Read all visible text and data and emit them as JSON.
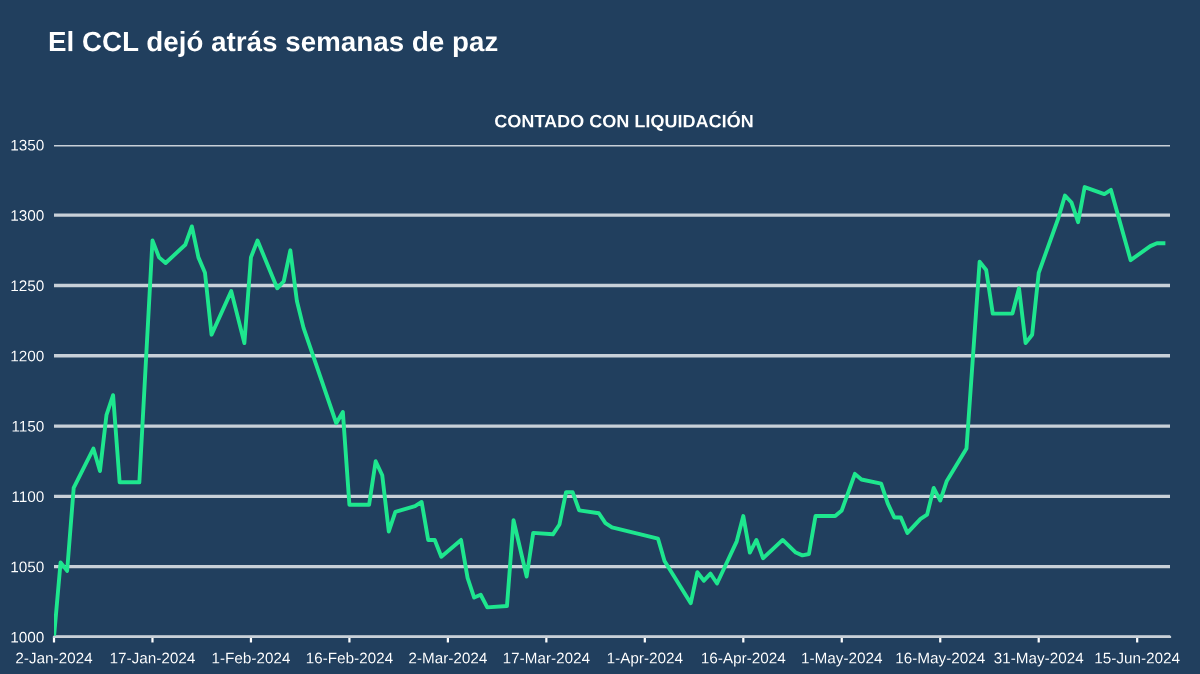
{
  "chart_data": {
    "type": "line",
    "title": "El CCL dejó atrás semanas de paz",
    "subtitle": "CONTADO CON LIQUIDACIÓN",
    "x": [
      "2024-01-02",
      "2024-01-03",
      "2024-01-04",
      "2024-01-05",
      "2024-01-08",
      "2024-01-09",
      "2024-01-10",
      "2024-01-11",
      "2024-01-12",
      "2024-01-15",
      "2024-01-17",
      "2024-01-18",
      "2024-01-19",
      "2024-01-22",
      "2024-01-23",
      "2024-01-24",
      "2024-01-25",
      "2024-01-26",
      "2024-01-29",
      "2024-01-31",
      "2024-02-01",
      "2024-02-02",
      "2024-02-05",
      "2024-02-06",
      "2024-02-07",
      "2024-02-08",
      "2024-02-09",
      "2024-02-14",
      "2024-02-15",
      "2024-02-16",
      "2024-02-19",
      "2024-02-20",
      "2024-02-21",
      "2024-02-22",
      "2024-02-23",
      "2024-02-26",
      "2024-02-27",
      "2024-02-28",
      "2024-02-29",
      "2024-03-01",
      "2024-03-04",
      "2024-03-05",
      "2024-03-06",
      "2024-03-07",
      "2024-03-08",
      "2024-03-11",
      "2024-03-12",
      "2024-03-14",
      "2024-03-15",
      "2024-03-18",
      "2024-03-19",
      "2024-03-20",
      "2024-03-21",
      "2024-03-22",
      "2024-03-25",
      "2024-03-26",
      "2024-03-27",
      "2024-04-03",
      "2024-04-04",
      "2024-04-08",
      "2024-04-09",
      "2024-04-10",
      "2024-04-11",
      "2024-04-12",
      "2024-04-15",
      "2024-04-16",
      "2024-04-17",
      "2024-04-18",
      "2024-04-19",
      "2024-04-22",
      "2024-04-24",
      "2024-04-25",
      "2024-04-26",
      "2024-04-27",
      "2024-04-30",
      "2024-05-01",
      "2024-05-03",
      "2024-05-04",
      "2024-05-07",
      "2024-05-08",
      "2024-05-09",
      "2024-05-10",
      "2024-05-11",
      "2024-05-13",
      "2024-05-14",
      "2024-05-15",
      "2024-05-16",
      "2024-05-17",
      "2024-05-20",
      "2024-05-22",
      "2024-05-23",
      "2024-05-24",
      "2024-05-27",
      "2024-05-28",
      "2024-05-29",
      "2024-05-30",
      "2024-05-31",
      "2024-06-03",
      "2024-06-04",
      "2024-06-05",
      "2024-06-06",
      "2024-06-07",
      "2024-06-10",
      "2024-06-11",
      "2024-06-14",
      "2024-06-17",
      "2024-06-18",
      "2024-06-19"
    ],
    "series": [
      {
        "color": "#1ee68e",
        "values": [
          1000,
          1053,
          1047,
          1106,
          1134,
          1118,
          1158,
          1172,
          1110,
          1110,
          1282,
          1270,
          1266,
          1279,
          1292,
          1270,
          1259,
          1215,
          1246,
          1209,
          1270,
          1282,
          1248,
          1253,
          1275,
          1239,
          1220,
          1152,
          1160,
          1094,
          1094,
          1125,
          1115,
          1075,
          1089,
          1093,
          1096,
          1069,
          1069,
          1057,
          1069,
          1042,
          1028,
          1030,
          1021,
          1022,
          1083,
          1043,
          1074,
          1073,
          1080,
          1103,
          1103,
          1090,
          1088,
          1081,
          1078,
          1070,
          1054,
          1024,
          1046,
          1040,
          1045,
          1038,
          1068,
          1086,
          1060,
          1069,
          1056,
          1069,
          1060,
          1058,
          1059,
          1086,
          1086,
          1090,
          1116,
          1112,
          1109,
          1095,
          1085,
          1085,
          1074,
          1084,
          1087,
          1106,
          1097,
          1111,
          1134,
          1267,
          1261,
          1230,
          1230,
          1248,
          1209,
          1215,
          1259,
          1298,
          1314,
          1309,
          1295,
          1320,
          1315,
          1318,
          1268,
          1278,
          1280,
          1280
        ]
      }
    ],
    "xlim": [
      "2024-01-02",
      "2024-06-20"
    ],
    "xticks": [
      {
        "value": "2024-01-02",
        "label": "2-Jan-2024"
      },
      {
        "value": "2024-01-17",
        "label": "17-Jan-2024"
      },
      {
        "value": "2024-02-01",
        "label": "1-Feb-2024"
      },
      {
        "value": "2024-02-16",
        "label": "16-Feb-2024"
      },
      {
        "value": "2024-03-02",
        "label": "2-Mar-2024"
      },
      {
        "value": "2024-03-17",
        "label": "17-Mar-2024"
      },
      {
        "value": "2024-04-01",
        "label": "1-Apr-2024"
      },
      {
        "value": "2024-04-16",
        "label": "16-Apr-2024"
      },
      {
        "value": "2024-05-01",
        "label": "1-May-2024"
      },
      {
        "value": "2024-05-16",
        "label": "16-May-2024"
      },
      {
        "value": "2024-05-31",
        "label": "31-May-2024"
      },
      {
        "value": "2024-06-15",
        "label": "15-Jun-2024"
      }
    ],
    "ylim": [
      1000,
      1350
    ],
    "yticks": [
      1000,
      1050,
      1100,
      1150,
      1200,
      1250,
      1300,
      1350
    ],
    "grid": "y",
    "legend": false,
    "marker": "none",
    "line_style": "solid"
  }
}
